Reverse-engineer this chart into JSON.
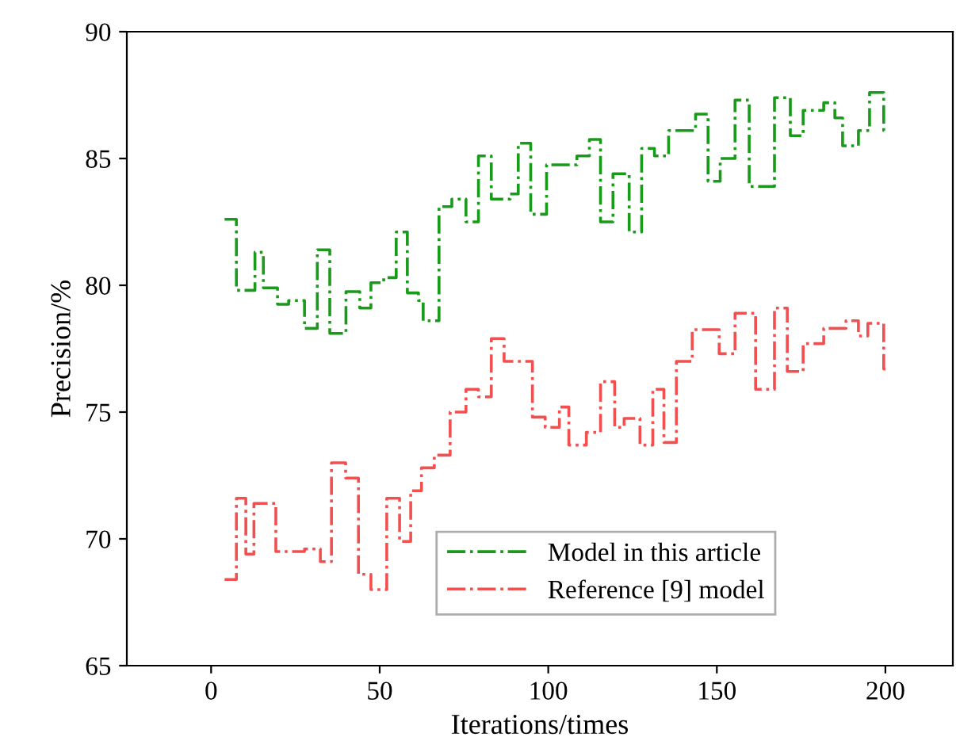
{
  "chart_data": {
    "type": "step",
    "xlabel": "Iterations/times",
    "ylabel": "Precision/%",
    "xlim": [
      -25,
      220
    ],
    "ylim": [
      65,
      90
    ],
    "xticks": [
      0,
      50,
      100,
      150,
      200
    ],
    "yticks": [
      65,
      70,
      75,
      80,
      85,
      90
    ],
    "grid": false,
    "legend": "bottom",
    "line_style": "dashdot",
    "marker": "none",
    "series": [
      {
        "name": "Model in this article",
        "color": "#1a9a1a",
        "x": [
          4,
          7.5,
          13,
          15.5,
          19.7,
          23,
          27.7,
          31.5,
          35.2,
          40,
          44.1,
          47.4,
          51.2,
          54.9,
          58.2,
          61.5,
          62.9,
          67.6,
          71.4,
          75.6,
          79.3,
          83.1,
          88.7,
          91.1,
          94.8,
          99.5,
          108.5,
          112.2,
          115.5,
          119.2,
          124,
          127.7,
          131.5,
          135.7,
          143.7,
          147.4,
          151,
          155.4,
          159.6,
          167.1,
          171.8,
          175.6,
          181.7,
          185,
          187.3,
          192,
          195.3,
          199.5,
          200
        ],
        "values": [
          82.6,
          79.8,
          81.3,
          79.9,
          79.25,
          79.4,
          78.3,
          81.4,
          78.1,
          79.75,
          79.1,
          80.1,
          80.3,
          82.1,
          79.7,
          79.4,
          78.6,
          83.1,
          83.4,
          82.5,
          85.1,
          83.4,
          83.6,
          85.6,
          82.8,
          84.75,
          85.1,
          85.75,
          82.5,
          84.4,
          82.1,
          85.4,
          85.1,
          86.1,
          86.75,
          84.1,
          85.0,
          87.3,
          83.9,
          87.4,
          85.9,
          86.9,
          87.2,
          86.6,
          85.5,
          86.1,
          87.6,
          86.1,
          86.1
        ]
      },
      {
        "name": "Reference [9] model",
        "color": "#f05050",
        "x": [
          4,
          7.5,
          10.3,
          12.7,
          19.2,
          27.7,
          32.4,
          35.7,
          39.9,
          43.7,
          47.4,
          52.1,
          55.9,
          59.2,
          62.4,
          66.2,
          70.9,
          75.6,
          79.3,
          83.1,
          86.9,
          95.3,
          99.1,
          103.3,
          106.1,
          111.3,
          115.5,
          119.7,
          122.5,
          127.2,
          131,
          134.3,
          138,
          142.7,
          150.7,
          155.4,
          161.5,
          167.1,
          170.9,
          175.6,
          181.7,
          188.3,
          192,
          194.8,
          199.5,
          200
        ],
        "values": [
          68.4,
          71.6,
          69.4,
          71.4,
          69.5,
          69.6,
          69.1,
          73.0,
          72.4,
          68.6,
          68.0,
          71.6,
          69.9,
          71.9,
          72.8,
          73.3,
          75.0,
          75.9,
          75.6,
          77.9,
          77.0,
          74.8,
          74.4,
          75.2,
          73.7,
          74.2,
          76.2,
          74.4,
          74.75,
          73.7,
          75.9,
          73.8,
          77.0,
          78.25,
          77.3,
          78.9,
          75.9,
          79.1,
          76.6,
          77.7,
          78.3,
          78.6,
          78.0,
          78.5,
          76.7,
          76.7
        ]
      }
    ]
  }
}
